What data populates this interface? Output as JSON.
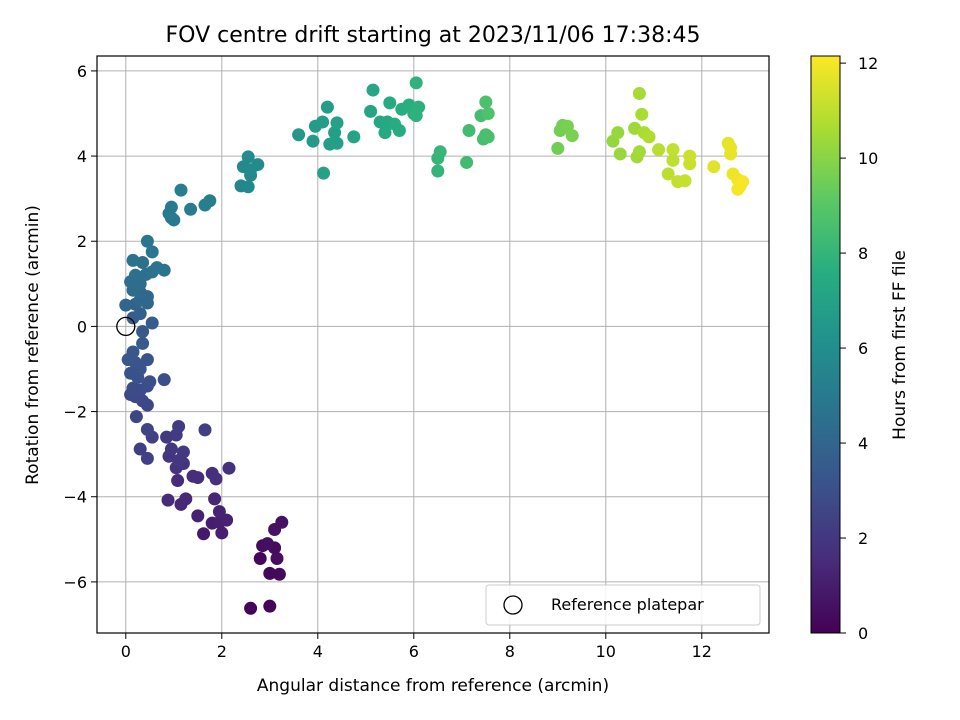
{
  "chart_data": {
    "type": "scatter",
    "title": "FOV centre drift starting at 2023/11/06 17:38:45",
    "xlabel": "Angular distance from reference (arcmin)",
    "ylabel": "Rotation from reference (arcmin)",
    "xlim": [
      -0.6,
      13.4
    ],
    "ylim": [
      -7.2,
      6.35
    ],
    "xticks": [
      0,
      2,
      4,
      6,
      8,
      10,
      12
    ],
    "yticks": [
      -6,
      -4,
      -2,
      0,
      2,
      4,
      6
    ],
    "grid": true,
    "legend": {
      "placement": "bottom-right",
      "entries": [
        "Reference platepar"
      ]
    },
    "reference_point": {
      "x": 0,
      "y": 0
    },
    "colorbar": {
      "label": "Hours from first FF file",
      "range": [
        0,
        12.15
      ],
      "ticks": [
        0,
        2,
        4,
        6,
        8,
        10,
        12
      ],
      "colormap": "viridis"
    },
    "series": [
      {
        "points": [
          [
            2.6,
            -6.62,
            0.1
          ],
          [
            3.0,
            -6.57,
            0.15
          ],
          [
            2.8,
            -5.45,
            0.2
          ],
          [
            3.0,
            -5.8,
            0.25
          ],
          [
            3.2,
            -5.82,
            0.3
          ],
          [
            2.85,
            -5.15,
            0.35
          ],
          [
            3.1,
            -5.2,
            0.4
          ],
          [
            3.15,
            -5.45,
            0.45
          ],
          [
            2.95,
            -5.1,
            0.5
          ],
          [
            3.1,
            -4.77,
            0.55
          ],
          [
            3.25,
            -4.6,
            0.6
          ],
          [
            1.62,
            -4.87,
            0.9
          ],
          [
            1.8,
            -4.62,
            1.0
          ],
          [
            1.95,
            -4.6,
            1.05
          ],
          [
            2.0,
            -4.85,
            1.1
          ],
          [
            2.1,
            -4.55,
            1.15
          ],
          [
            1.5,
            -4.45,
            1.2
          ],
          [
            1.95,
            -4.35,
            1.25
          ],
          [
            1.85,
            -4.05,
            1.3
          ],
          [
            1.15,
            -4.18,
            1.35
          ],
          [
            1.25,
            -4.05,
            1.4
          ],
          [
            0.88,
            -4.08,
            1.45
          ],
          [
            1.08,
            -3.62,
            1.5
          ],
          [
            1.4,
            -3.52,
            1.55
          ],
          [
            1.5,
            -3.55,
            1.6
          ],
          [
            1.8,
            -3.45,
            1.65
          ],
          [
            1.88,
            -3.58,
            1.7
          ],
          [
            2.15,
            -3.33,
            1.75
          ],
          [
            1.05,
            -3.32,
            1.8
          ],
          [
            1.2,
            -3.22,
            1.85
          ],
          [
            0.9,
            -3.05,
            1.9
          ],
          [
            1.1,
            -3.15,
            1.95
          ],
          [
            0.95,
            -2.88,
            2.0
          ],
          [
            1.2,
            -2.95,
            2.05
          ],
          [
            0.85,
            -2.6,
            2.1
          ],
          [
            1.05,
            -2.55,
            2.15
          ],
          [
            1.1,
            -2.35,
            2.2
          ],
          [
            1.65,
            -2.43,
            2.25
          ],
          [
            0.3,
            -2.88,
            2.3
          ],
          [
            0.45,
            -3.1,
            2.35
          ],
          [
            0.55,
            -2.6,
            2.4
          ],
          [
            0.45,
            -2.42,
            2.45
          ],
          [
            0.22,
            -2.12,
            2.5
          ],
          [
            0.45,
            -1.85,
            2.6
          ],
          [
            0.35,
            -1.75,
            2.65
          ],
          [
            0.2,
            -1.65,
            2.7
          ],
          [
            0.1,
            -1.6,
            2.75
          ],
          [
            0.15,
            -1.45,
            2.8
          ],
          [
            0.3,
            -1.5,
            2.85
          ],
          [
            0.45,
            -1.4,
            2.9
          ],
          [
            0.8,
            -1.25,
            2.95
          ],
          [
            0.5,
            -1.3,
            3.0
          ],
          [
            0.25,
            -1.2,
            3.05
          ],
          [
            0.1,
            -1.1,
            3.1
          ],
          [
            0.3,
            -1.0,
            3.15
          ],
          [
            0.45,
            -0.78,
            3.2
          ],
          [
            0.2,
            -0.85,
            3.25
          ],
          [
            0.05,
            -0.78,
            3.3
          ],
          [
            0.15,
            -0.6,
            3.35
          ],
          [
            0.35,
            -0.4,
            3.4
          ],
          [
            0.35,
            -0.12,
            3.45
          ],
          [
            0.55,
            0.08,
            3.5
          ],
          [
            0.15,
            0.2,
            3.7
          ],
          [
            0.3,
            0.3,
            3.8
          ],
          [
            0.2,
            0.52,
            3.9
          ],
          [
            0.0,
            0.5,
            4.0
          ],
          [
            0.3,
            0.62,
            4.05
          ],
          [
            0.45,
            0.55,
            4.1
          ],
          [
            0.45,
            0.7,
            4.15
          ],
          [
            0.3,
            0.8,
            4.2
          ],
          [
            0.15,
            0.85,
            4.25
          ],
          [
            0.1,
            1.05,
            4.3
          ],
          [
            0.3,
            1.0,
            4.35
          ],
          [
            0.42,
            1.22,
            4.4
          ],
          [
            0.2,
            1.2,
            4.45
          ],
          [
            0.35,
            1.5,
            4.5
          ],
          [
            0.15,
            1.55,
            4.55
          ],
          [
            0.55,
            1.28,
            4.6
          ],
          [
            0.65,
            1.38,
            4.65
          ],
          [
            0.8,
            1.32,
            4.7
          ],
          [
            0.55,
            1.75,
            4.75
          ],
          [
            0.45,
            2.0,
            4.8
          ],
          [
            0.95,
            2.55,
            4.9
          ],
          [
            1.0,
            2.5,
            4.95
          ],
          [
            0.9,
            2.65,
            5.0
          ],
          [
            0.95,
            2.8,
            5.05
          ],
          [
            1.35,
            2.75,
            5.1
          ],
          [
            1.15,
            3.2,
            5.15
          ],
          [
            1.65,
            2.85,
            5.2
          ],
          [
            1.75,
            2.95,
            5.25
          ],
          [
            2.4,
            3.3,
            5.6
          ],
          [
            2.55,
            3.28,
            5.65
          ],
          [
            2.6,
            3.55,
            5.7
          ],
          [
            2.45,
            3.75,
            5.75
          ],
          [
            2.6,
            3.68,
            5.8
          ],
          [
            2.55,
            3.98,
            5.85
          ],
          [
            2.75,
            3.8,
            5.9
          ],
          [
            3.6,
            4.5,
            6.5
          ],
          [
            3.9,
            4.35,
            6.6
          ],
          [
            3.95,
            4.7,
            6.65
          ],
          [
            4.1,
            4.8,
            6.7
          ],
          [
            4.2,
            5.15,
            6.75
          ],
          [
            4.25,
            4.28,
            6.8
          ],
          [
            4.35,
            4.55,
            6.85
          ],
          [
            4.4,
            4.3,
            6.9
          ],
          [
            4.4,
            4.78,
            6.95
          ],
          [
            4.12,
            3.6,
            7.0
          ],
          [
            4.75,
            4.45,
            7.05
          ],
          [
            5.1,
            5.05,
            7.2
          ],
          [
            5.15,
            5.55,
            7.25
          ],
          [
            5.3,
            4.8,
            7.3
          ],
          [
            5.4,
            4.55,
            7.35
          ],
          [
            5.45,
            4.8,
            7.4
          ],
          [
            5.5,
            5.25,
            7.45
          ],
          [
            5.6,
            4.75,
            7.5
          ],
          [
            5.7,
            4.6,
            7.55
          ],
          [
            5.75,
            5.1,
            7.6
          ],
          [
            5.9,
            5.2,
            7.65
          ],
          [
            6.0,
            5.0,
            7.7
          ],
          [
            6.1,
            5.15,
            7.75
          ],
          [
            6.05,
            4.95,
            7.8
          ],
          [
            6.05,
            5.72,
            7.85
          ],
          [
            6.5,
            3.65,
            8.0
          ],
          [
            6.5,
            3.95,
            8.05
          ],
          [
            6.55,
            4.1,
            8.1
          ],
          [
            7.1,
            3.85,
            8.35
          ],
          [
            7.15,
            4.6,
            8.4
          ],
          [
            7.4,
            4.95,
            8.45
          ],
          [
            7.45,
            4.4,
            8.5
          ],
          [
            7.5,
            4.5,
            8.55
          ],
          [
            7.55,
            4.45,
            8.6
          ],
          [
            7.5,
            5.27,
            8.65
          ],
          [
            7.55,
            5.0,
            8.7
          ],
          [
            9.0,
            4.18,
            9.5
          ],
          [
            9.05,
            4.6,
            9.55
          ],
          [
            9.1,
            4.72,
            9.6
          ],
          [
            9.2,
            4.7,
            9.65
          ],
          [
            9.3,
            4.48,
            9.7
          ],
          [
            10.15,
            4.35,
            10.2
          ],
          [
            10.25,
            4.55,
            10.25
          ],
          [
            10.3,
            4.05,
            10.3
          ],
          [
            10.6,
            4.65,
            10.4
          ],
          [
            10.65,
            3.98,
            10.45
          ],
          [
            10.7,
            4.1,
            10.5
          ],
          [
            10.7,
            5.47,
            10.55
          ],
          [
            10.75,
            4.98,
            10.6
          ],
          [
            10.8,
            4.55,
            10.65
          ],
          [
            10.9,
            4.45,
            10.7
          ],
          [
            11.1,
            4.15,
            10.9
          ],
          [
            11.3,
            3.58,
            10.95
          ],
          [
            11.4,
            3.9,
            11.0
          ],
          [
            11.4,
            4.15,
            11.05
          ],
          [
            11.5,
            3.4,
            11.1
          ],
          [
            11.65,
            3.42,
            11.15
          ],
          [
            11.75,
            3.82,
            11.2
          ],
          [
            11.75,
            4.0,
            11.25
          ],
          [
            12.25,
            3.75,
            11.6
          ],
          [
            12.55,
            4.3,
            11.7
          ],
          [
            12.6,
            4.05,
            11.75
          ],
          [
            12.6,
            4.2,
            11.8
          ],
          [
            12.65,
            3.58,
            11.85
          ],
          [
            12.75,
            3.45,
            11.9
          ],
          [
            12.8,
            3.3,
            11.95
          ],
          [
            12.75,
            3.22,
            12.0
          ],
          [
            12.85,
            3.4,
            12.05
          ]
        ]
      }
    ]
  }
}
